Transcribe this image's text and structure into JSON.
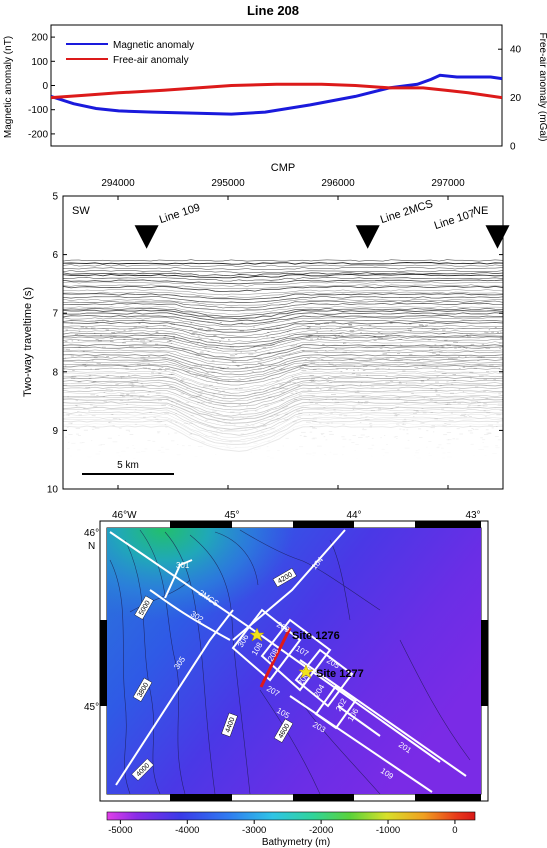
{
  "title": "Line 208",
  "chart_data": [
    {
      "type": "line",
      "title": "Line 208",
      "ylabel_left": "Magnetic anomaly (nT)",
      "ylabel_right": "Free-air anomaly (mGal)",
      "ylim_left": [
        -250,
        250
      ],
      "yticks_left": [
        "200",
        "100",
        "0",
        "-100",
        "-200"
      ],
      "ylim_right": [
        0,
        50
      ],
      "yticks_right": [
        "40",
        "20",
        "0"
      ],
      "legend": "top-left",
      "series": [
        {
          "name": "Magnetic anomaly",
          "color": "#1a1adc",
          "axis": "left",
          "x": [
            293500,
            293700,
            293900,
            294100,
            294400,
            294800,
            295100,
            295400,
            295800,
            296200,
            296500,
            296750,
            296870,
            296950,
            297100,
            297400,
            297500
          ],
          "y": [
            -45,
            -75,
            -95,
            -105,
            -110,
            -115,
            -118,
            -110,
            -80,
            -45,
            -10,
            5,
            25,
            42,
            35,
            35,
            28
          ]
        },
        {
          "name": "Free-air anomaly",
          "color": "#dc1a1a",
          "axis": "right",
          "x": [
            293500,
            293800,
            294100,
            294500,
            294800,
            295100,
            295500,
            295900,
            296200,
            296500,
            296800,
            297000,
            297200,
            297500
          ],
          "y": [
            20,
            21,
            22,
            23,
            24,
            25,
            25.5,
            25.5,
            25,
            24,
            24,
            23,
            22,
            20
          ]
        }
      ]
    },
    {
      "type": "image",
      "xlabel": "CMP",
      "xticks": [
        "294000",
        "295000",
        "296000",
        "297000"
      ],
      "xlim": [
        293500,
        297500
      ],
      "ylabel": "Two-way traveltime (s)",
      "yticks": [
        "5",
        "6",
        "7",
        "8",
        "9",
        "10"
      ],
      "ylim": [
        10,
        5
      ],
      "annotations": [
        "SW",
        "NE",
        "Line 109",
        "Line 2MCS",
        "Line 107"
      ],
      "crossings": [
        {
          "label": "Line 109",
          "cmp": 294260
        },
        {
          "label": "Line 2MCS",
          "cmp": 296270
        },
        {
          "label": "Line 107",
          "cmp": 297450
        }
      ],
      "scale_bar": "5 km"
    },
    {
      "type": "map",
      "lon_ticks": [
        "46°W",
        "45°",
        "44°",
        "43°"
      ],
      "lat_ticks": [
        "46°",
        "N",
        "45°"
      ],
      "colorbar_label": "Bathymetry (m)",
      "colorbar_ticks": [
        "-5000",
        "-4000",
        "-3000",
        "-2000",
        "-1000",
        "0"
      ],
      "colorbar_range": [
        -5200,
        300
      ],
      "sites": [
        "Site 1276",
        "Site 1277"
      ],
      "track_labels": [
        "301",
        "2MCS",
        "302",
        "305",
        "104",
        "209",
        "107",
        "306",
        "108",
        "208",
        "205",
        "206",
        "207",
        "105",
        "204",
        "202",
        "203",
        "106",
        "201",
        "109"
      ],
      "contour_labels": [
        "5000",
        "4200",
        "3800",
        "4400",
        "4600",
        "4000"
      ]
    }
  ]
}
